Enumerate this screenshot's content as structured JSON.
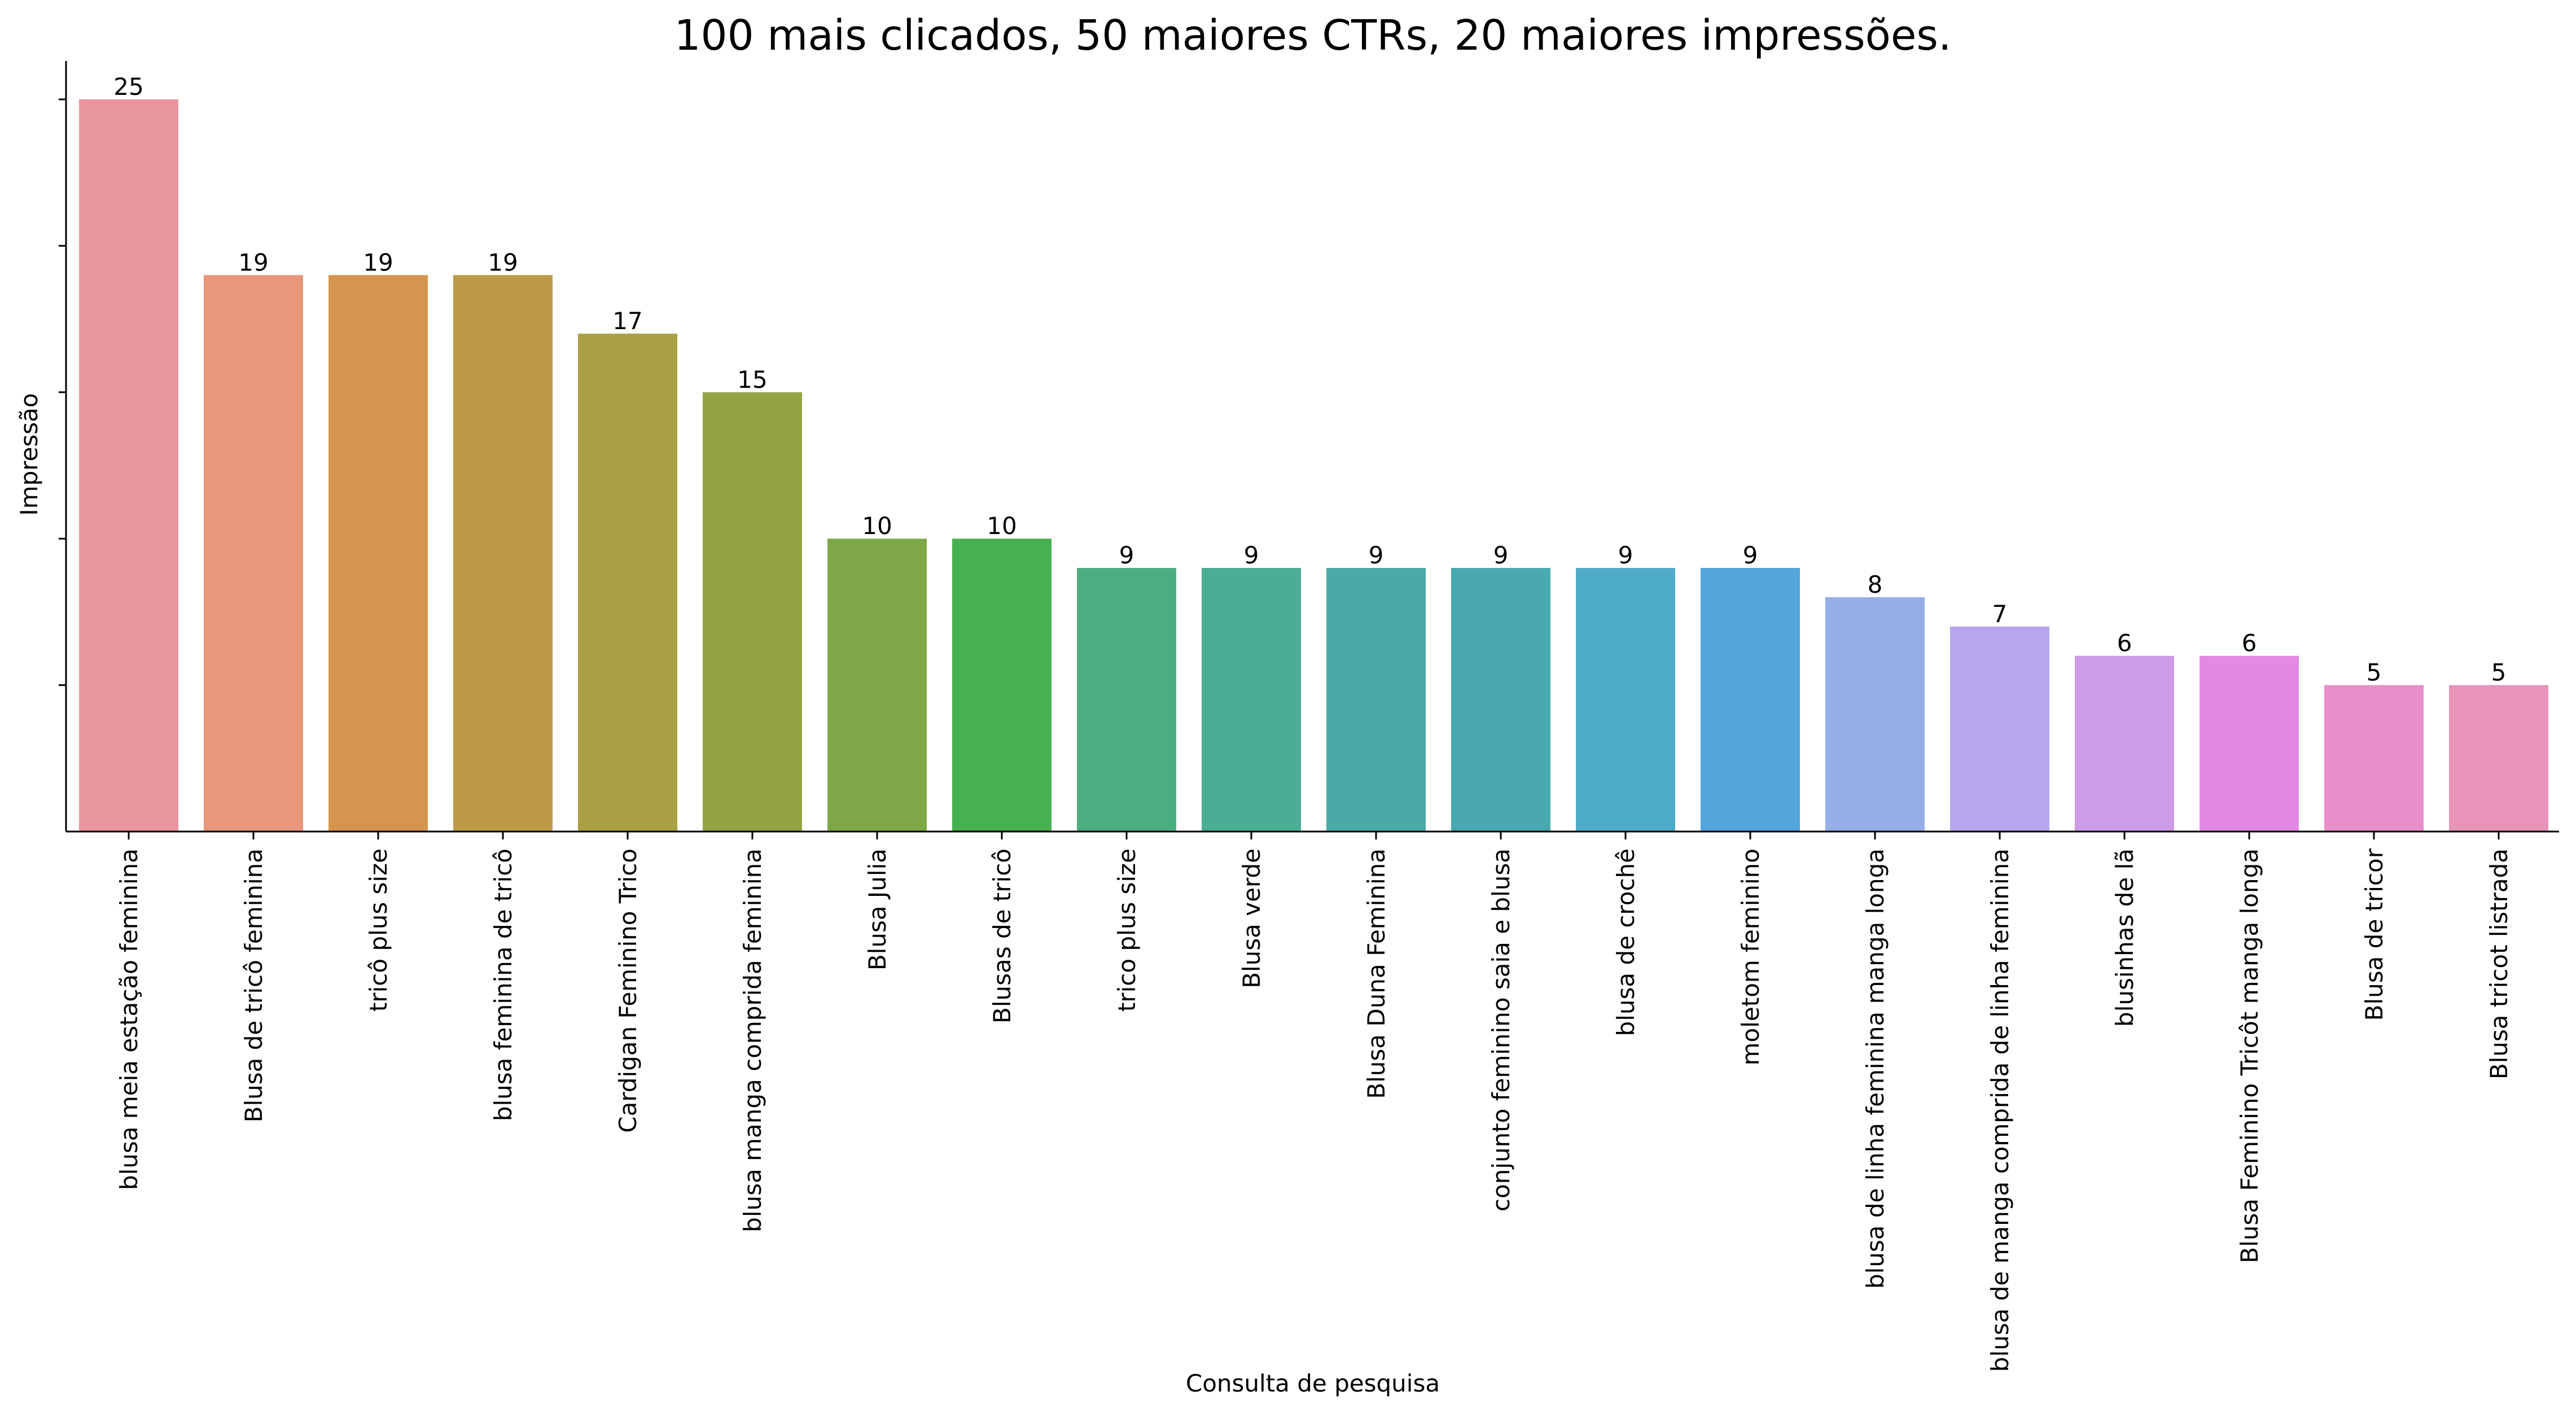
{
  "chart_data": {
    "type": "bar",
    "title": "100 mais clicados, 50 maiores CTRs, 20 maiores impressões.",
    "xlabel": "Consulta de pesquisa",
    "ylabel": "Impressão",
    "ylim": [
      0,
      26.3
    ],
    "y_ticks": [
      5,
      10,
      15,
      20,
      25
    ],
    "y_tick_labels_visible": false,
    "grid": false,
    "legend": "none",
    "categories": [
      "blusa meia estação feminina",
      "Blusa de tricô feminina",
      "tricô plus size",
      "blusa feminina de tricô",
      "Cardigan Feminino Trico",
      "blusa manga comprida feminina",
      "Blusa Julia",
      "Blusas de tricô",
      "trico plus size",
      "Blusa verde",
      "Blusa Duna Feminina",
      "conjunto feminino saia e blusa",
      "blusa de crochê",
      "moletom feminino",
      "blusa de linha feminina manga longa",
      "blusa de manga comprida de linha feminina",
      "blusinhas de lã",
      "Blusa Feminino Tricôt manga longa",
      "Blusa de tricor",
      "Blusa tricot listrada"
    ],
    "values": [
      25,
      19,
      19,
      19,
      17,
      15,
      10,
      10,
      9,
      9,
      9,
      9,
      9,
      9,
      8,
      7,
      6,
      6,
      5,
      5
    ],
    "colors": [
      "#e9969f",
      "#e8967c",
      "#d6954e",
      "#be9a48",
      "#a99f44",
      "#93a446",
      "#7ea848",
      "#47b050",
      "#4aae80",
      "#4aad94",
      "#4aaaa6",
      "#4aa9b0",
      "#4eabc8",
      "#52a6dc",
      "#95aee7",
      "#b6a6ec",
      "#cd9ce6",
      "#e28ae3",
      "#e88fcb",
      "#e794b8"
    ]
  }
}
